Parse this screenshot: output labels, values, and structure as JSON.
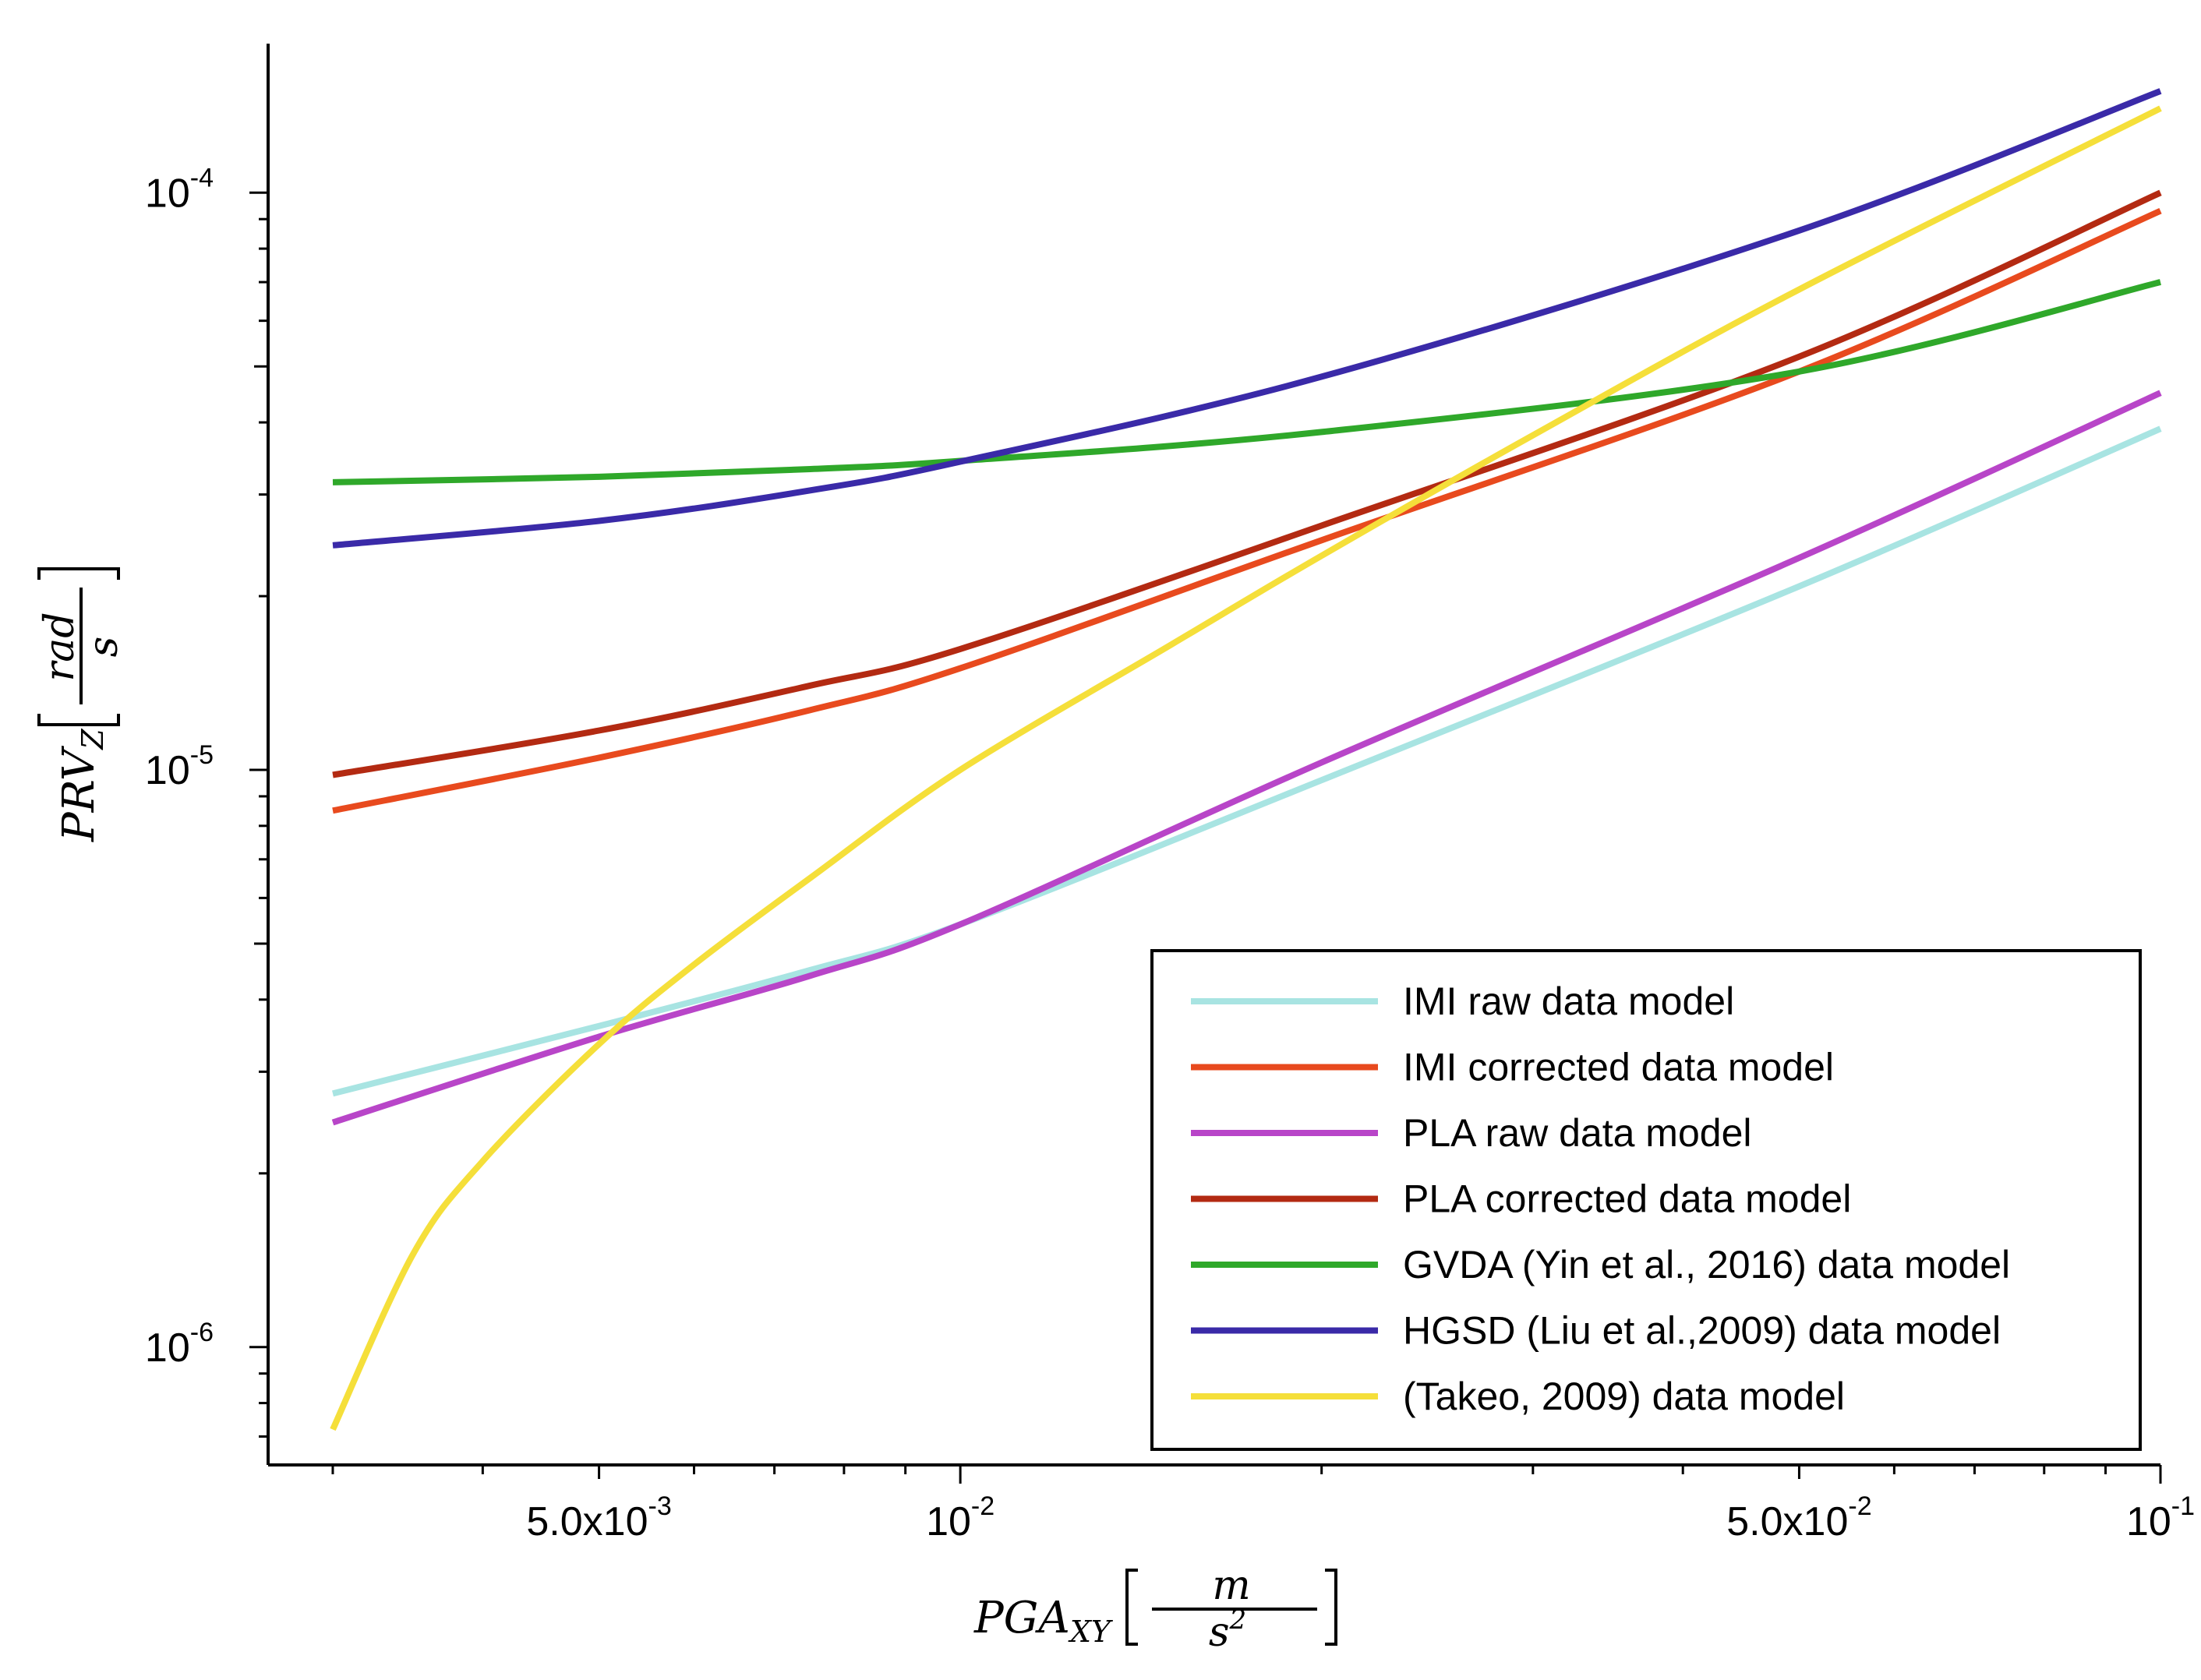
{
  "chart_data": {
    "type": "line",
    "xlabel": {
      "main": "PGA",
      "sub": "XY",
      "unit_num": "m",
      "unit_den": "s",
      "unit_den_exp": "2"
    },
    "ylabel": {
      "main": "PRV",
      "sub": "Z",
      "unit_num": "rad",
      "unit_den": "s"
    },
    "x_scale": "log",
    "y_scale": "log",
    "xlim": [
      0.00265,
      0.1
    ],
    "ylim": [
      6.25e-07,
      0.000179
    ],
    "x_ticks": [
      {
        "value": 0.005,
        "base": "5.0x10",
        "exp": "-3"
      },
      {
        "value": 0.01,
        "base": "10",
        "exp": "-2"
      },
      {
        "value": 0.05,
        "base": "5.0x10",
        "exp": "-2"
      },
      {
        "value": 0.1,
        "base": "10",
        "exp": "-1"
      }
    ],
    "y_ticks": [
      {
        "value": 1e-06,
        "base": "10",
        "exp": "-6"
      },
      {
        "value": 1e-05,
        "base": "10",
        "exp": "-5"
      },
      {
        "value": 0.0001,
        "base": "10",
        "exp": "-4"
      }
    ],
    "grid": false,
    "legend_position": "bottom-right",
    "series": [
      {
        "name": "IMI raw data model",
        "color": "#a8e4e2",
        "x": [
          0.003,
          0.005,
          0.0075,
          0.01,
          0.02,
          0.05,
          0.1
        ],
        "y": [
          2.75e-06,
          3.6e-06,
          4.5e-06,
          5.4e-06,
          9.6e-06,
          2.08e-05,
          3.9e-05
        ]
      },
      {
        "name": "IMI corrected data model",
        "color": "#e84a1e",
        "x": [
          0.003,
          0.005,
          0.0075,
          0.01,
          0.02,
          0.05,
          0.1
        ],
        "y": [
          8.5e-06,
          1.05e-05,
          1.27e-05,
          1.5e-05,
          2.5e-05,
          4.9e-05,
          9.3e-05
        ]
      },
      {
        "name": "PLA raw data model",
        "color": "#b845c8",
        "x": [
          0.003,
          0.005,
          0.0075,
          0.01,
          0.02,
          0.05,
          0.1
        ],
        "y": [
          2.45e-06,
          3.45e-06,
          4.4e-06,
          5.4e-06,
          1.03e-05,
          2.33e-05,
          4.5e-05
        ]
      },
      {
        "name": "PLA corrected data model",
        "color": "#b32a12",
        "x": [
          0.003,
          0.005,
          0.0075,
          0.01,
          0.02,
          0.05,
          0.1
        ],
        "y": [
          9.8e-06,
          1.17e-05,
          1.4e-05,
          1.62e-05,
          2.65e-05,
          5.2e-05,
          0.0001
        ]
      },
      {
        "name": "GVDA (Yin et al., 2016) data model",
        "color": "#2fa82a",
        "x": [
          0.003,
          0.005,
          0.0075,
          0.01,
          0.02,
          0.05,
          0.1
        ],
        "y": [
          3.15e-05,
          3.22e-05,
          3.32e-05,
          3.43e-05,
          3.85e-05,
          4.9e-05,
          7e-05
        ]
      },
      {
        "name": "HGSD (Liu et al.,2009) data model",
        "color": "#3a2aa8",
        "x": [
          0.003,
          0.005,
          0.0075,
          0.01,
          0.02,
          0.05,
          0.1
        ],
        "y": [
          2.45e-05,
          2.7e-05,
          3.05e-05,
          3.42e-05,
          4.8e-05,
          8.6e-05,
          0.00015
        ]
      },
      {
        "name": "(Takeo, 2009) data model",
        "color": "#f5df3a",
        "x": [
          0.003,
          0.0035,
          0.004,
          0.005,
          0.006,
          0.0075,
          0.01,
          0.015,
          0.02,
          0.03,
          0.05,
          0.1
        ],
        "y": [
          7.2e-07,
          1.45e-06,
          2.1e-06,
          3.35e-06,
          4.6e-06,
          6.5e-06,
          1e-05,
          1.65e-05,
          2.35e-05,
          3.8e-05,
          6.8e-05,
          0.00014
        ]
      }
    ]
  }
}
